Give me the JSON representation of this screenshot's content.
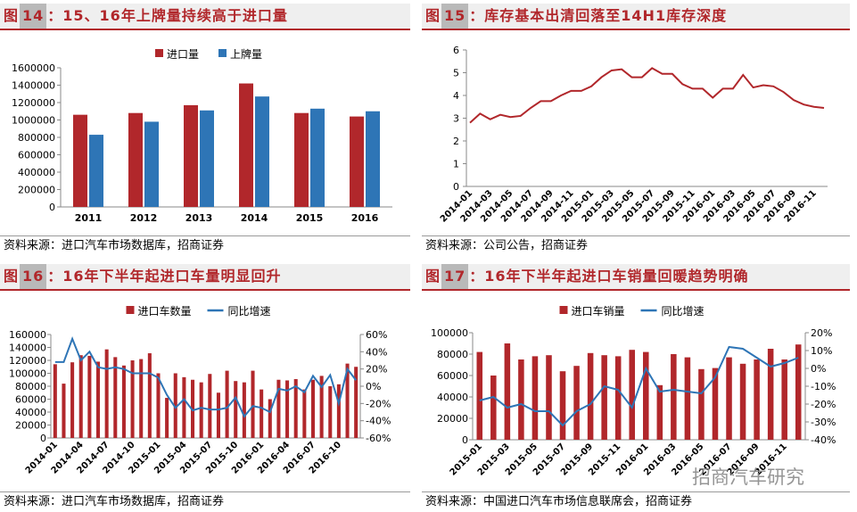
{
  "figures": [
    {
      "label": "图",
      "number": "14",
      "title": "：15、16年上牌量持续高于进口量",
      "source": "资料来源：进口汽车市场数据库，招商证券"
    },
    {
      "label": "图",
      "number": "15",
      "title": "：库存基本出清回落至14H1库存深度",
      "source": "资料来源：公司公告，招商证券"
    },
    {
      "label": "图",
      "number": "16",
      "title": "：16年下半年起进口车量明显回升",
      "source": "资料来源：进口汽车市场数据库，招商证券"
    },
    {
      "label": "图",
      "number": "17",
      "title": "：16年下半年起进口车销量回暖趋势明确",
      "source": "资料来源：中国进口汽车市场信息联席会，招商证券"
    }
  ],
  "watermark": "招商汽车研究",
  "colors": {
    "bar_red": "#b1272b",
    "bar_blue": "#2e75b6",
    "line_blue": "#2e75b6",
    "title_bg": "#efefef"
  },
  "chart_data": [
    {
      "type": "bar",
      "categories": [
        "2011",
        "2012",
        "2013",
        "2014",
        "2015",
        "2016"
      ],
      "series": [
        {
          "name": "进口量",
          "values": [
            1060000,
            1080000,
            1170000,
            1420000,
            1080000,
            1040000
          ]
        },
        {
          "name": "上牌量",
          "values": [
            830000,
            980000,
            1110000,
            1270000,
            1130000,
            1100000
          ]
        }
      ],
      "ylim": [
        0,
        1600000
      ],
      "yticks": [
        "0",
        "200000",
        "400000",
        "600000",
        "800000",
        "1000000",
        "1200000",
        "1400000",
        "1600000"
      ],
      "legend": "top-center",
      "grid": false
    },
    {
      "type": "line",
      "x": [
        "2014-01",
        "2014-02",
        "2014-03",
        "2014-04",
        "2014-05",
        "2014-06",
        "2014-07",
        "2014-08",
        "2014-09",
        "2014-10",
        "2014-11",
        "2014-12",
        "2015-01",
        "2015-02",
        "2015-03",
        "2015-04",
        "2015-05",
        "2015-06",
        "2015-07",
        "2015-08",
        "2015-09",
        "2015-10",
        "2015-11",
        "2015-12",
        "2016-01",
        "2016-02",
        "2016-03",
        "2016-04",
        "2016-05",
        "2016-06",
        "2016-07",
        "2016-08",
        "2016-09",
        "2016-10",
        "2016-11",
        "2016-12"
      ],
      "xticks": [
        "2014-01",
        "2014-03",
        "2014-05",
        "2014-07",
        "2014-09",
        "2014-11",
        "2015-01",
        "2015-03",
        "2015-05",
        "2015-07",
        "2015-09",
        "2015-11",
        "2016-01",
        "2016-03",
        "2016-05",
        "2016-07",
        "2016-09",
        "2016-11"
      ],
      "series": [
        {
          "values": [
            2.8,
            3.2,
            2.95,
            3.15,
            3.05,
            3.1,
            3.45,
            3.75,
            3.75,
            4.0,
            4.2,
            4.2,
            4.4,
            4.8,
            5.1,
            5.15,
            4.8,
            4.8,
            5.2,
            4.95,
            4.95,
            4.5,
            4.3,
            4.3,
            3.9,
            4.3,
            4.3,
            4.9,
            4.35,
            4.45,
            4.4,
            4.15,
            3.8,
            3.6,
            3.5,
            3.45
          ]
        }
      ],
      "ylim": [
        0,
        6
      ],
      "yticks": [
        "0",
        "1",
        "2",
        "3",
        "4",
        "5",
        "6"
      ],
      "grid": false
    },
    {
      "type": "bar",
      "x": [
        "2014-01",
        "2014-02",
        "2014-03",
        "2014-04",
        "2014-05",
        "2014-06",
        "2014-07",
        "2014-08",
        "2014-09",
        "2014-10",
        "2014-11",
        "2014-12",
        "2015-01",
        "2015-02",
        "2015-03",
        "2015-04",
        "2015-05",
        "2015-06",
        "2015-07",
        "2015-08",
        "2015-09",
        "2015-10",
        "2015-11",
        "2015-12",
        "2016-01",
        "2016-02",
        "2016-03",
        "2016-04",
        "2016-05",
        "2016-06",
        "2016-07",
        "2016-08",
        "2016-09",
        "2016-10",
        "2016-11",
        "2016-12"
      ],
      "xticks": [
        "2014-01",
        "2014-04",
        "2014-07",
        "2014-10",
        "2015-01",
        "2015-04",
        "2015-07",
        "2015-10",
        "2016-01",
        "2016-04",
        "2016-07",
        "2016-10"
      ],
      "series": [
        {
          "name": "进口车数量",
          "axis": "left",
          "values": [
            114000,
            84000,
            117000,
            128000,
            127000,
            118000,
            137000,
            125000,
            112000,
            120000,
            122000,
            131000,
            100000,
            62000,
            100000,
            94000,
            90000,
            86000,
            99000,
            70000,
            104000,
            88000,
            86000,
            104000,
            75000,
            60000,
            90000,
            89000,
            91000,
            75000,
            90000,
            96000,
            80000,
            83000,
            115000,
            110000
          ]
        },
        {
          "name": "同比增速",
          "axis": "right",
          "type": "line",
          "values": [
            0.28,
            0.28,
            0.55,
            0.3,
            0.4,
            0.22,
            0.2,
            0.22,
            0.2,
            0.15,
            0.15,
            0.15,
            0.1,
            -0.1,
            -0.25,
            -0.15,
            -0.28,
            -0.25,
            -0.27,
            -0.27,
            -0.25,
            -0.13,
            -0.35,
            -0.23,
            -0.25,
            -0.3,
            -0.03,
            -0.05,
            0.0,
            -0.07,
            0.12,
            -0.01,
            0.13,
            -0.2,
            0.2,
            0.07
          ]
        }
      ],
      "ylim_left": [
        0,
        160000
      ],
      "ylim_right": [
        -0.6,
        0.6
      ],
      "yticks_left": [
        "0",
        "20000",
        "40000",
        "60000",
        "80000",
        "100000",
        "120000",
        "140000",
        "160000"
      ],
      "yticks_right": [
        "-60%",
        "-40%",
        "-20%",
        "0%",
        "20%",
        "40%",
        "60%"
      ],
      "legend": "top-center",
      "grid": false
    },
    {
      "type": "bar",
      "x": [
        "2015-01",
        "2015-02",
        "2015-03",
        "2015-04",
        "2015-05",
        "2015-06",
        "2015-07",
        "2015-08",
        "2015-09",
        "2015-10",
        "2015-11",
        "2015-12",
        "2016-01",
        "2016-02",
        "2016-03",
        "2016-04",
        "2016-05",
        "2016-06",
        "2016-07",
        "2016-08",
        "2016-09",
        "2016-10",
        "2016-11",
        "2016-12"
      ],
      "xticks": [
        "2015-01",
        "2015-03",
        "2015-05",
        "2015-07",
        "2015-09",
        "2015-11",
        "2016-01",
        "2016-03",
        "2016-05",
        "2016-07",
        "2016-09",
        "2016-11"
      ],
      "series": [
        {
          "name": "进口车销量",
          "axis": "left",
          "values": [
            82000,
            60000,
            90000,
            75000,
            78000,
            79000,
            64000,
            69000,
            81000,
            79000,
            78000,
            84000,
            82000,
            51000,
            80000,
            77000,
            66000,
            67000,
            77000,
            71000,
            75000,
            85000,
            75000,
            89000
          ]
        },
        {
          "name": "同比增速",
          "axis": "right",
          "type": "line",
          "values": [
            -0.18,
            -0.16,
            -0.22,
            -0.2,
            -0.24,
            -0.24,
            -0.32,
            -0.24,
            -0.2,
            -0.1,
            -0.12,
            -0.22,
            0.0,
            -0.13,
            -0.12,
            -0.13,
            -0.14,
            -0.05,
            0.12,
            0.11,
            0.06,
            0.01,
            0.03,
            0.06
          ]
        }
      ],
      "ylim_left": [
        0,
        100000
      ],
      "ylim_right": [
        -0.4,
        0.2
      ],
      "yticks_left": [
        "0",
        "20000",
        "40000",
        "60000",
        "80000",
        "100000"
      ],
      "yticks_right": [
        "-40%",
        "-30%",
        "-20%",
        "-10%",
        "0%",
        "10%",
        "20%"
      ],
      "legend": "top-center",
      "grid": false
    }
  ]
}
